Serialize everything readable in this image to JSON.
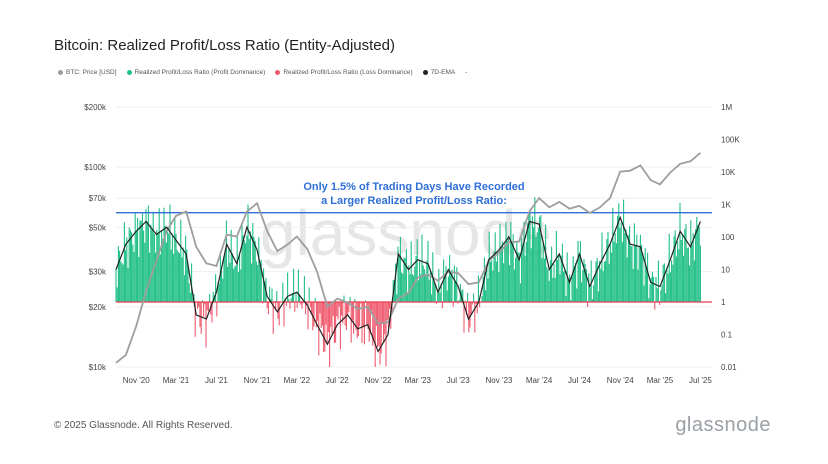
{
  "title": "Bitcoin: Realized Profit/Loss Ratio (Entity-Adjusted)",
  "legend": [
    {
      "label": "BTC: Price [USD]",
      "color": "#9e9e9e"
    },
    {
      "label": "Realized Profit/Loss Ratio (Profit Dominance)",
      "color": "#1fbf86"
    },
    {
      "label": "Realized Profit/Loss Ratio (Loss Dominance)",
      "color": "#ef5b6f"
    },
    {
      "label": "7D-EMA",
      "color": "#222222"
    },
    {
      "label": "-",
      "color": ""
    }
  ],
  "annotation": {
    "line1": "Only 1.5% of Trading Days Have Recorded",
    "line2": "a Larger Realized Profit/Loss Ratio:"
  },
  "watermark": "glassnode",
  "footer": "© 2025 Glassnode. All Rights Reserved.",
  "brand": "glassnode",
  "chart_data": {
    "type": "line",
    "scale": "log",
    "x_tick_labels": [
      "Nov '20",
      "Mar '21",
      "Jul '21",
      "Nov '21",
      "Mar '22",
      "Jul '22",
      "Nov '22",
      "Mar '23",
      "Jul '23",
      "Nov '23",
      "Mar '24",
      "Jul '24",
      "Nov '24",
      "Mar '25",
      "Jul '25"
    ],
    "x_dates": [
      "2020-11",
      "2021-03",
      "2021-07",
      "2021-11",
      "2022-03",
      "2022-07",
      "2022-11",
      "2023-03",
      "2023-07",
      "2023-11",
      "2024-03",
      "2024-07",
      "2024-11",
      "2025-03",
      "2025-07"
    ],
    "y_left_label": "",
    "y_left_ticks": [
      {
        "label": "$10k",
        "value": 10000
      },
      {
        "label": "$20k",
        "value": 20000
      },
      {
        "label": "$30k",
        "value": 30000
      },
      {
        "label": "$50k",
        "value": 50000
      },
      {
        "label": "$70k",
        "value": 70000
      },
      {
        "label": "$100k",
        "value": 100000
      },
      {
        "label": "$200k",
        "value": 200000
      }
    ],
    "y_right_ticks": [
      {
        "label": "0.01",
        "value": 0.01
      },
      {
        "label": "0.1",
        "value": 0.1
      },
      {
        "label": "1",
        "value": 1
      },
      {
        "label": "10",
        "value": 10
      },
      {
        "label": "100",
        "value": 100
      },
      {
        "label": "1K",
        "value": 1000
      },
      {
        "label": "10K",
        "value": 10000
      },
      {
        "label": "100K",
        "value": 100000
      },
      {
        "label": "1M",
        "value": 1000000
      }
    ],
    "reference_lines": [
      {
        "name": "threshold",
        "value": 560,
        "color": "#2f6fd8"
      },
      {
        "name": "breakeven",
        "value": 1,
        "color": "#e53e4f"
      }
    ],
    "series": [
      {
        "name": "BTC: Price [USD]",
        "color": "#9e9e9e",
        "points": [
          {
            "x": "2020-09",
            "y": 10500
          },
          {
            "x": "2020-10",
            "y": 11500
          },
          {
            "x": "2020-11",
            "y": 16000
          },
          {
            "x": "2020-12",
            "y": 24000
          },
          {
            "x": "2021-01",
            "y": 34000
          },
          {
            "x": "2021-02",
            "y": 48000
          },
          {
            "x": "2021-03",
            "y": 57000
          },
          {
            "x": "2021-04",
            "y": 60000
          },
          {
            "x": "2021-05",
            "y": 40000
          },
          {
            "x": "2021-06",
            "y": 33000
          },
          {
            "x": "2021-07",
            "y": 32000
          },
          {
            "x": "2021-08",
            "y": 46000
          },
          {
            "x": "2021-09",
            "y": 45000
          },
          {
            "x": "2021-10",
            "y": 60000
          },
          {
            "x": "2021-11",
            "y": 66000
          },
          {
            "x": "2021-12",
            "y": 48000
          },
          {
            "x": "2022-01",
            "y": 38000
          },
          {
            "x": "2022-02",
            "y": 41000
          },
          {
            "x": "2022-03",
            "y": 45000
          },
          {
            "x": "2022-04",
            "y": 39000
          },
          {
            "x": "2022-05",
            "y": 30000
          },
          {
            "x": "2022-06",
            "y": 20000
          },
          {
            "x": "2022-07",
            "y": 22000
          },
          {
            "x": "2022-08",
            "y": 21000
          },
          {
            "x": "2022-09",
            "y": 19500
          },
          {
            "x": "2022-10",
            "y": 20000
          },
          {
            "x": "2022-11",
            "y": 16500
          },
          {
            "x": "2022-12",
            "y": 16800
          },
          {
            "x": "2023-01",
            "y": 22000
          },
          {
            "x": "2023-02",
            "y": 23500
          },
          {
            "x": "2023-03",
            "y": 28000
          },
          {
            "x": "2023-04",
            "y": 29000
          },
          {
            "x": "2023-05",
            "y": 27000
          },
          {
            "x": "2023-06",
            "y": 30000
          },
          {
            "x": "2023-07",
            "y": 29500
          },
          {
            "x": "2023-08",
            "y": 26000
          },
          {
            "x": "2023-09",
            "y": 26500
          },
          {
            "x": "2023-10",
            "y": 34000
          },
          {
            "x": "2023-11",
            "y": 37500
          },
          {
            "x": "2023-12",
            "y": 42000
          },
          {
            "x": "2024-01",
            "y": 42500
          },
          {
            "x": "2024-02",
            "y": 60000
          },
          {
            "x": "2024-03",
            "y": 70000
          },
          {
            "x": "2024-04",
            "y": 63000
          },
          {
            "x": "2024-05",
            "y": 67000
          },
          {
            "x": "2024-06",
            "y": 62000
          },
          {
            "x": "2024-07",
            "y": 64000
          },
          {
            "x": "2024-08",
            "y": 59000
          },
          {
            "x": "2024-09",
            "y": 63000
          },
          {
            "x": "2024-10",
            "y": 70000
          },
          {
            "x": "2024-11",
            "y": 95000
          },
          {
            "x": "2024-12",
            "y": 96000
          },
          {
            "x": "2025-01",
            "y": 102000
          },
          {
            "x": "2025-02",
            "y": 86000
          },
          {
            "x": "2025-03",
            "y": 82000
          },
          {
            "x": "2025-04",
            "y": 94000
          },
          {
            "x": "2025-05",
            "y": 104000
          },
          {
            "x": "2025-06",
            "y": 107000
          },
          {
            "x": "2025-07",
            "y": 118000
          }
        ]
      },
      {
        "name": "7D-EMA",
        "color": "#222222",
        "points": [
          {
            "x": "2020-09",
            "y": 10
          },
          {
            "x": "2020-10",
            "y": 60
          },
          {
            "x": "2020-11",
            "y": 150
          },
          {
            "x": "2020-12",
            "y": 300
          },
          {
            "x": "2021-01",
            "y": 120
          },
          {
            "x": "2021-02",
            "y": 200
          },
          {
            "x": "2021-03",
            "y": 80
          },
          {
            "x": "2021-04",
            "y": 30
          },
          {
            "x": "2021-05",
            "y": 0.4
          },
          {
            "x": "2021-06",
            "y": 0.3
          },
          {
            "x": "2021-07",
            "y": 2
          },
          {
            "x": "2021-08",
            "y": 60
          },
          {
            "x": "2021-09",
            "y": 15
          },
          {
            "x": "2021-10",
            "y": 200
          },
          {
            "x": "2021-11",
            "y": 40
          },
          {
            "x": "2021-12",
            "y": 1.5
          },
          {
            "x": "2022-01",
            "y": 0.5
          },
          {
            "x": "2022-02",
            "y": 1.5
          },
          {
            "x": "2022-03",
            "y": 2
          },
          {
            "x": "2022-04",
            "y": 0.8
          },
          {
            "x": "2022-05",
            "y": 0.2
          },
          {
            "x": "2022-06",
            "y": 0.05
          },
          {
            "x": "2022-07",
            "y": 0.2
          },
          {
            "x": "2022-08",
            "y": 0.4
          },
          {
            "x": "2022-09",
            "y": 0.15
          },
          {
            "x": "2022-10",
            "y": 0.2
          },
          {
            "x": "2022-11",
            "y": 0.03
          },
          {
            "x": "2022-12",
            "y": 0.1
          },
          {
            "x": "2023-01",
            "y": 30
          },
          {
            "x": "2023-02",
            "y": 10
          },
          {
            "x": "2023-03",
            "y": 20
          },
          {
            "x": "2023-04",
            "y": 15
          },
          {
            "x": "2023-05",
            "y": 2
          },
          {
            "x": "2023-06",
            "y": 10
          },
          {
            "x": "2023-07",
            "y": 3
          },
          {
            "x": "2023-08",
            "y": 0.3
          },
          {
            "x": "2023-09",
            "y": 1
          },
          {
            "x": "2023-10",
            "y": 20
          },
          {
            "x": "2023-11",
            "y": 40
          },
          {
            "x": "2023-12",
            "y": 100
          },
          {
            "x": "2024-01",
            "y": 20
          },
          {
            "x": "2024-02",
            "y": 300
          },
          {
            "x": "2024-03",
            "y": 250
          },
          {
            "x": "2024-04",
            "y": 10
          },
          {
            "x": "2024-05",
            "y": 30
          },
          {
            "x": "2024-06",
            "y": 4
          },
          {
            "x": "2024-07",
            "y": 30
          },
          {
            "x": "2024-08",
            "y": 3
          },
          {
            "x": "2024-09",
            "y": 15
          },
          {
            "x": "2024-10",
            "y": 60
          },
          {
            "x": "2024-11",
            "y": 400
          },
          {
            "x": "2024-12",
            "y": 60
          },
          {
            "x": "2025-01",
            "y": 50
          },
          {
            "x": "2025-02",
            "y": 4
          },
          {
            "x": "2025-03",
            "y": 3
          },
          {
            "x": "2025-04",
            "y": 20
          },
          {
            "x": "2025-05",
            "y": 150
          },
          {
            "x": "2025-06",
            "y": 50
          },
          {
            "x": "2025-07",
            "y": 300
          }
        ]
      }
    ]
  }
}
